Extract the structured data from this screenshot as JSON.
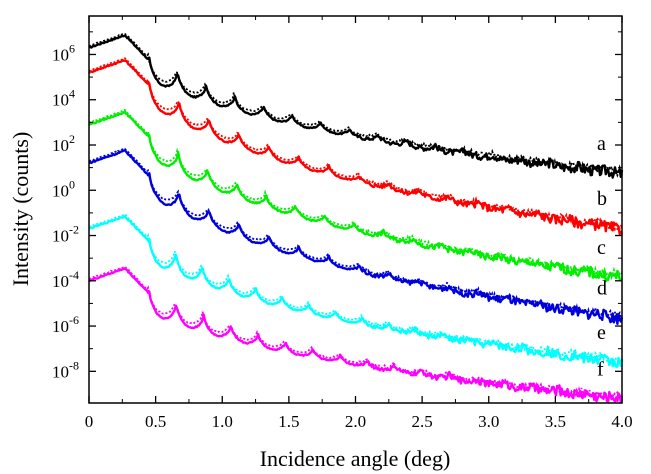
{
  "chart_data": {
    "type": "line",
    "title": "",
    "xlabel": "Incidence angle (deg)",
    "ylabel": "Intensity (counts)",
    "x_ticks": [
      "0",
      "0.5",
      "1.0",
      "1.5",
      "2.0",
      "2.5",
      "3.0",
      "3.5",
      "4.0"
    ],
    "y_tick_values": [
      1e-08,
      1e-06,
      0.0001,
      0.01,
      1,
      100,
      10000,
      1000000
    ],
    "y_tick_exponents": [
      "-8",
      "-6",
      "-4",
      "-2",
      "0",
      "2",
      "4",
      "6"
    ],
    "y_tick_base": "10",
    "xlim": [
      0,
      4.0
    ],
    "ylim_log10": [
      -9.4,
      7.7
    ],
    "y_scale": "log",
    "grid": false,
    "legend": "none",
    "series": [
      {
        "name": "a",
        "color": "#000000",
        "plateau_log10": 6.85,
        "critical_angle": 0.45,
        "fringe_period": 0.215,
        "decay_per_deg": 1.15,
        "end_log10": 0.8
      },
      {
        "name": "b",
        "color": "#ff0000",
        "plateau_log10": 5.75,
        "critical_angle": 0.45,
        "fringe_period": 0.225,
        "decay_per_deg": 1.45,
        "end_log10": -1.65
      },
      {
        "name": "c",
        "color": "#00ee00",
        "plateau_log10": 3.45,
        "critical_angle": 0.45,
        "fringe_period": 0.22,
        "decay_per_deg": 1.5,
        "end_log10": -3.8
      },
      {
        "name": "d",
        "color": "#0000dd",
        "plateau_log10": 1.75,
        "critical_angle": 0.45,
        "fringe_period": 0.225,
        "decay_per_deg": 1.45,
        "end_log10": -5.6
      },
      {
        "name": "e",
        "color": "#00ffff",
        "plateau_log10": -1.15,
        "critical_angle": 0.45,
        "fringe_period": 0.2,
        "decay_per_deg": 1.4,
        "end_log10": -7.55
      },
      {
        "name": "f",
        "color": "#ff00ff",
        "plateau_log10": -3.45,
        "critical_angle": 0.45,
        "fringe_period": 0.205,
        "decay_per_deg": 1.35,
        "end_log10": -9.15
      }
    ]
  }
}
